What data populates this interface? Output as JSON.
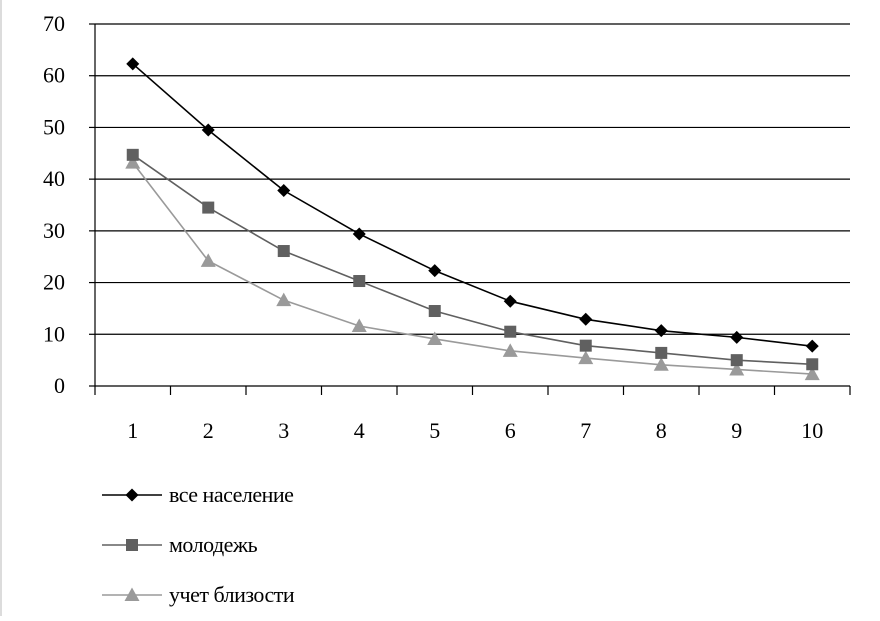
{
  "chart_data": {
    "type": "line",
    "title": "",
    "xlabel": "",
    "ylabel": "",
    "categories": [
      "1",
      "2",
      "3",
      "4",
      "5",
      "6",
      "7",
      "8",
      "9",
      "10"
    ],
    "ylim": [
      0,
      70
    ],
    "yticks": [
      "0",
      "10",
      "20",
      "30",
      "40",
      "50",
      "60",
      "70"
    ],
    "grid": "horizontal",
    "legend_position": "bottom-left",
    "series": [
      {
        "name": "все население",
        "marker": "diamond",
        "color": "#000000",
        "values": [
          62.3,
          49.5,
          37.8,
          29.4,
          22.3,
          16.4,
          12.9,
          10.7,
          9.4,
          7.7
        ]
      },
      {
        "name": "молодежь",
        "marker": "square",
        "color": "#606060",
        "values": [
          44.7,
          34.5,
          26.1,
          20.3,
          14.5,
          10.5,
          7.8,
          6.4,
          5.0,
          4.2
        ]
      },
      {
        "name": "учет близости",
        "marker": "triangle",
        "color": "#9a9a9a",
        "values": [
          43.2,
          24.2,
          16.6,
          11.6,
          9.1,
          6.8,
          5.4,
          4.1,
          3.2,
          2.3
        ]
      }
    ]
  }
}
